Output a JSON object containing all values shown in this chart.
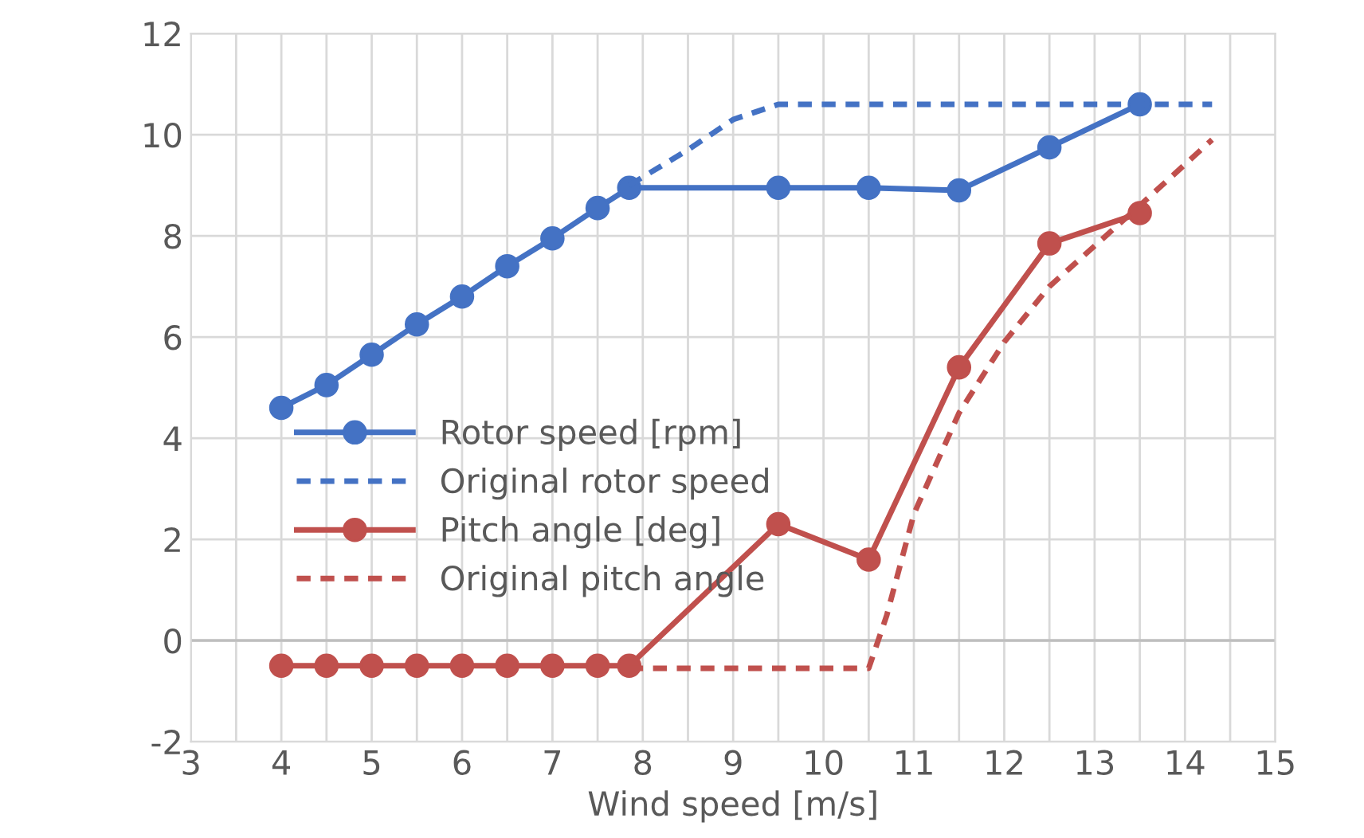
{
  "chart_data": {
    "type": "line",
    "xlabel": "Wind speed [m/s]",
    "xlim": [
      3,
      15
    ],
    "ylim": [
      -2,
      12
    ],
    "xticks": [
      3,
      {
        "value": 3.5,
        "label": null
      },
      4,
      {
        "value": 4.5,
        "label": null
      },
      5,
      {
        "value": 5.5,
        "label": null
      },
      6,
      {
        "value": 6.5,
        "label": null
      },
      7,
      {
        "value": 7.5,
        "label": null
      },
      8,
      {
        "value": 8.5,
        "label": null
      },
      9,
      {
        "value": 9.5,
        "label": null
      },
      10,
      {
        "value": 10.5,
        "label": null
      },
      11,
      {
        "value": 11.5,
        "label": null
      },
      12,
      {
        "value": 12.5,
        "label": null
      },
      13,
      {
        "value": 13.5,
        "label": null
      },
      14,
      {
        "value": 14.5,
        "label": null
      },
      15
    ],
    "yticks": [
      -2,
      0,
      2,
      4,
      6,
      8,
      10,
      12
    ],
    "grid": true,
    "legend": "left",
    "series": [
      {
        "name": "Rotor speed [rpm]",
        "color": "#4472c4",
        "marker": "circle",
        "line_style": "solid",
        "x": [
          4,
          4.5,
          5,
          5.5,
          6,
          6.5,
          7,
          7.5,
          7.85,
          9.5,
          10.5,
          11.5,
          12.5,
          13.5
        ],
        "values": [
          4.6,
          5.05,
          5.65,
          6.25,
          6.8,
          7.4,
          7.95,
          8.55,
          8.95,
          8.95,
          8.95,
          8.9,
          9.75,
          10.6
        ]
      },
      {
        "name": "Original rotor speed",
        "color": "#4472c4",
        "marker": "none",
        "line_style": "dashed",
        "x": [
          7.85,
          8.5,
          9,
          9.5,
          14.3
        ],
        "values": [
          9.0,
          9.7,
          10.3,
          10.6,
          10.6
        ]
      },
      {
        "name": "Pitch angle [deg]",
        "color": "#c0504d",
        "marker": "circle",
        "line_style": "solid",
        "x": [
          4,
          4.5,
          5,
          5.5,
          6,
          6.5,
          7,
          7.5,
          7.85,
          9.5,
          10.5,
          11.5,
          12.5,
          13.5
        ],
        "values": [
          -0.5,
          -0.5,
          -0.5,
          -0.5,
          -0.5,
          -0.5,
          -0.5,
          -0.5,
          -0.5,
          2.3,
          1.6,
          5.4,
          7.85,
          8.45
        ]
      },
      {
        "name": "Original pitch angle",
        "color": "#c0504d",
        "marker": "none",
        "line_style": "dashed",
        "x": [
          7.85,
          10.5,
          10.7,
          11,
          11.5,
          12,
          12.5,
          13,
          13.5,
          14.3
        ],
        "values": [
          -0.55,
          -0.55,
          0.5,
          2.5,
          4.5,
          5.9,
          7.0,
          7.8,
          8.6,
          9.9
        ]
      }
    ]
  }
}
